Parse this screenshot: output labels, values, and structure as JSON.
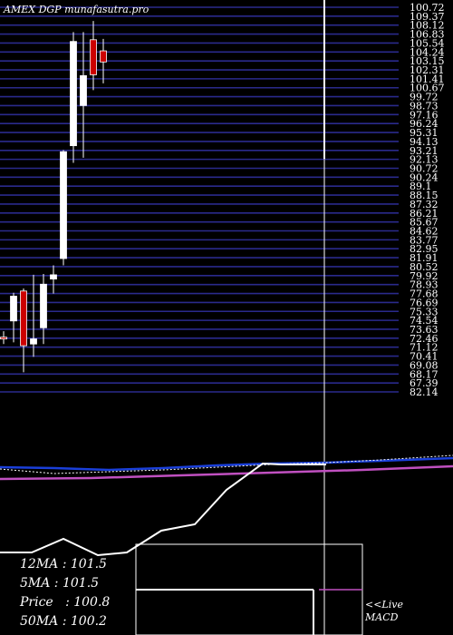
{
  "header": {
    "exchange": "AMEX",
    "symbol": "DGP",
    "site": "munafasutra.pro"
  },
  "ma_panel": {
    "ma12": "12MA : 101.5",
    "ma5": "5MA : 101.5",
    "price": "Price   : 100.8",
    "ma50": "50MA : 100.2"
  },
  "macd_label": {
    "line1": "<<Live",
    "line2": "MACD"
  },
  "colors": {
    "background": "#000000",
    "grid": "#2a2a8c",
    "up": "#ffffff",
    "down": "#cc0000",
    "wick": "#ffffff",
    "ma_blue": "#1a3fd9",
    "ma_pink": "#c050c0",
    "ma_dotted": "#ffffff",
    "macd_line": "#ffffff",
    "macd_signal": "#c050c0"
  },
  "chart_data": {
    "type": "candlestick",
    "title": "AMEX DGP munafasutra.pro",
    "y_axis_labels": [
      "100.72",
      "109.37",
      "108.12",
      "106.83",
      "105.54",
      "104.24",
      "103.15",
      "102.31",
      "101.41",
      "100.67",
      "99.72",
      "98.73",
      "97.16",
      "96.24",
      "95.31",
      "94.13",
      "93.21",
      "92.13",
      "90.72",
      "90.24",
      "89.1",
      "88.15",
      "87.32",
      "86.21",
      "85.67",
      "84.62",
      "83.77",
      "82.95",
      "81.91",
      "80.52",
      "79.92",
      "78.93",
      "77.68",
      "76.69",
      "75.33",
      "74.54",
      "73.63",
      "72.46",
      "71.12",
      "70.41",
      "69.08",
      "68.17",
      "67.39",
      "82.14"
    ],
    "ohlc": [
      {
        "open": 71.4,
        "high": 72.1,
        "low": 70.6,
        "close": 71.3
      },
      {
        "open": 73.3,
        "high": 76.6,
        "low": 70.8,
        "close": 76.2
      },
      {
        "open": 76.8,
        "high": 77.1,
        "low": 67.3,
        "close": 70.4
      },
      {
        "open": 70.6,
        "high": 78.7,
        "low": 69.1,
        "close": 71.2
      },
      {
        "open": 72.5,
        "high": 78.8,
        "low": 70.6,
        "close": 77.6
      },
      {
        "open": 78.2,
        "high": 79.8,
        "low": 76.5,
        "close": 78.7
      },
      {
        "open": 80.6,
        "high": 93.3,
        "low": 79.8,
        "close": 93.1
      },
      {
        "open": 93.8,
        "high": 107.1,
        "low": 91.8,
        "close": 106.0
      },
      {
        "open": 98.5,
        "high": 107.1,
        "low": 92.4,
        "close": 102.0
      },
      {
        "open": 106.2,
        "high": 108.4,
        "low": 100.3,
        "close": 102.1
      },
      {
        "open": 104.9,
        "high": 106.3,
        "low": 101.1,
        "close": 103.6
      }
    ],
    "ylim": [
      65.0,
      110.0
    ],
    "grid": true
  }
}
